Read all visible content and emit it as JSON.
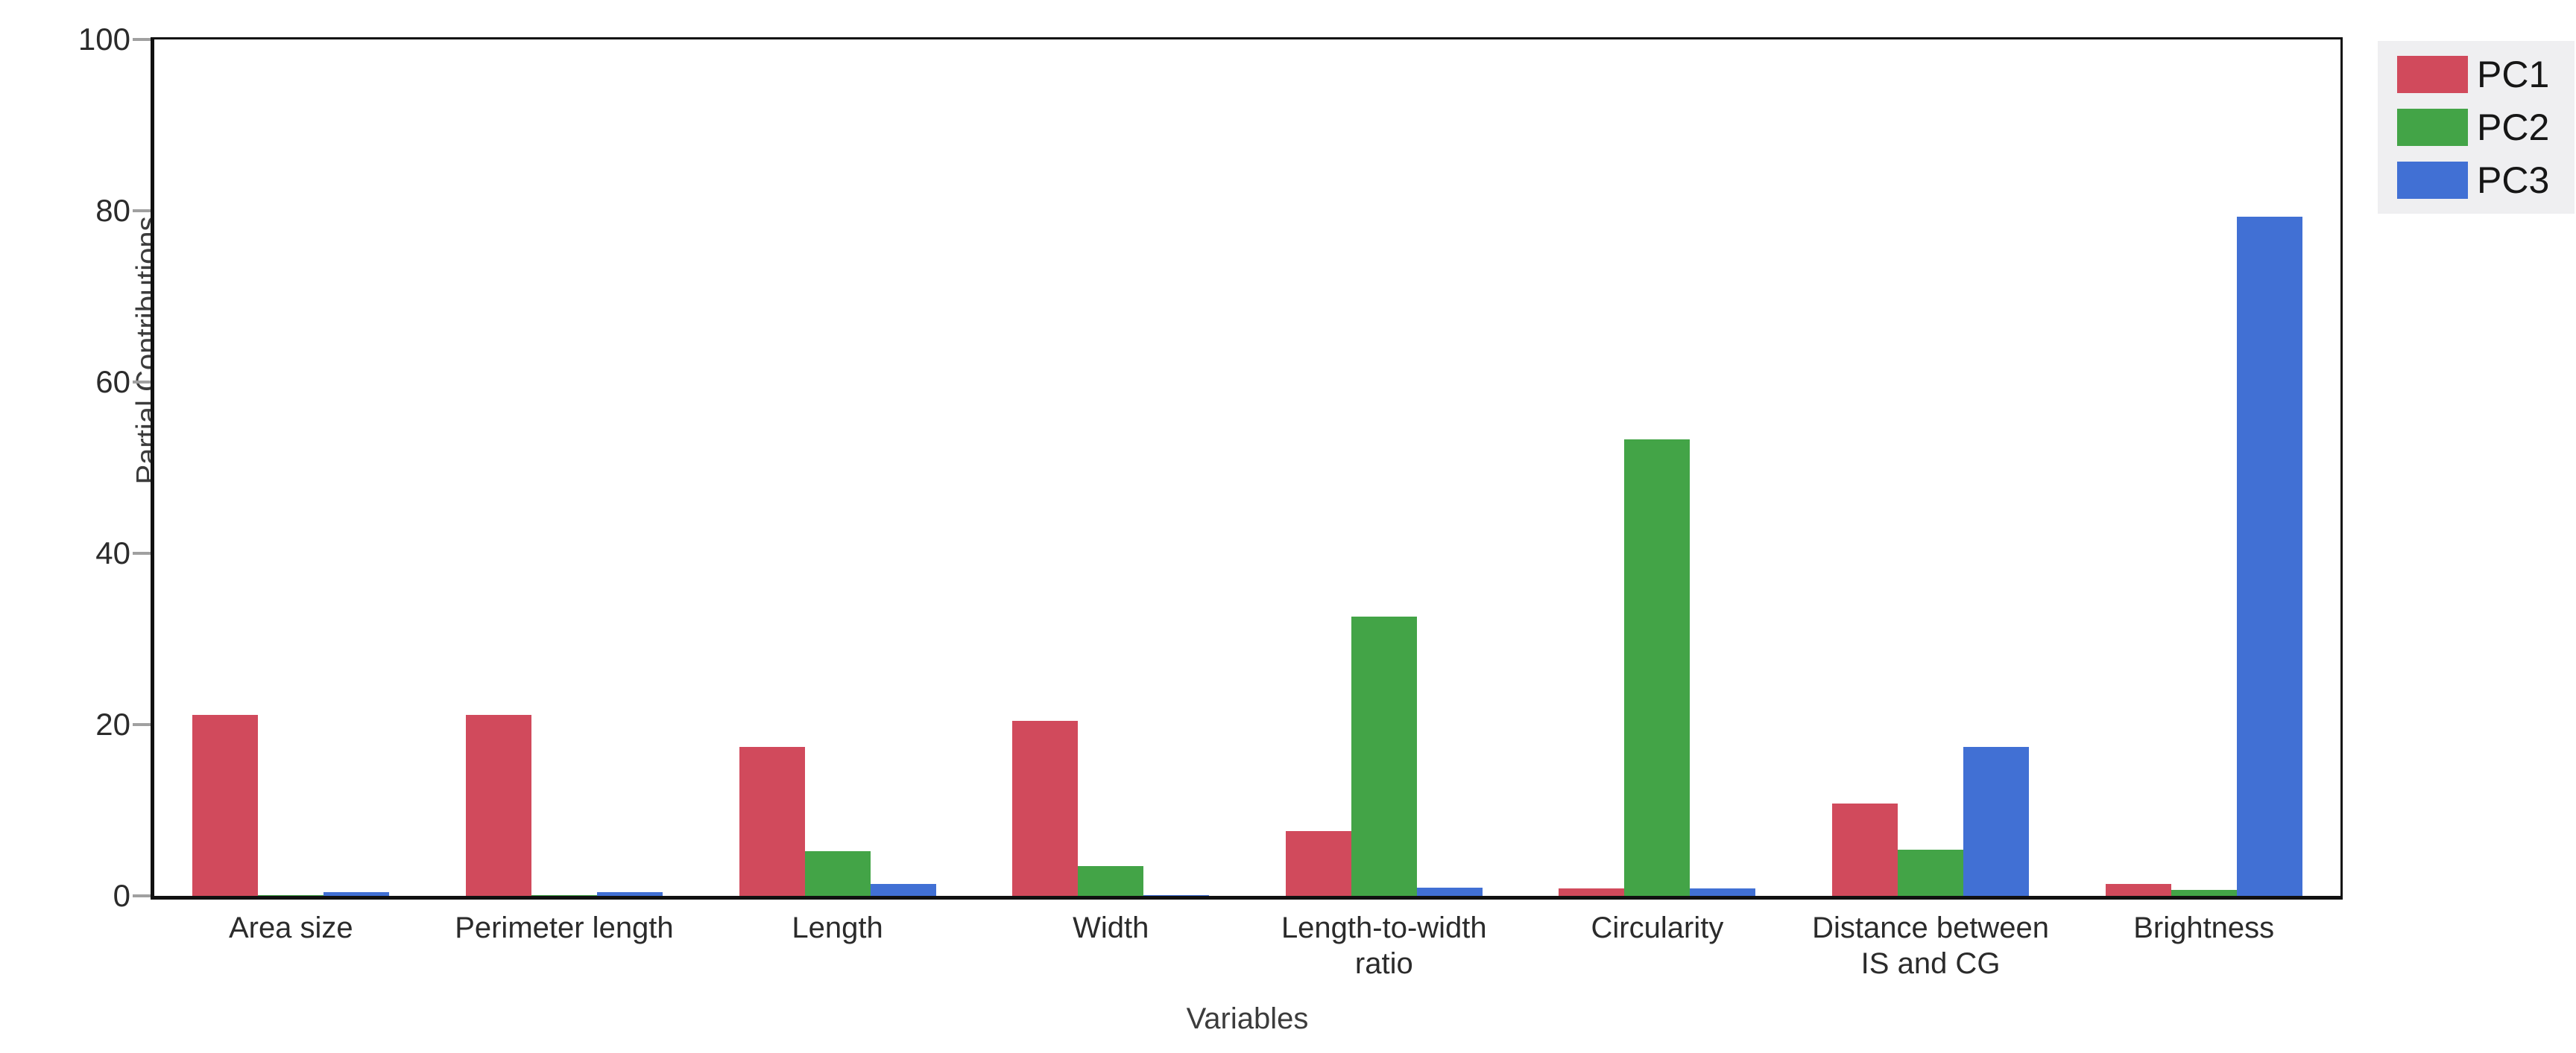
{
  "chart_data": {
    "type": "bar",
    "title": "",
    "xlabel": "Variables",
    "ylabel": "Partial Contributions",
    "ylim": [
      0,
      100
    ],
    "yticks": [
      0,
      20,
      40,
      60,
      80,
      100
    ],
    "grid": false,
    "legend_position": "top-right",
    "categories": [
      "Area size",
      "Perimeter length",
      "Length",
      "Width",
      "Length-to-width\nratio",
      "Circularity",
      "Distance between\nIS and CG",
      "Brightness"
    ],
    "series": [
      {
        "name": "PC1",
        "color": "#D14A5C",
        "values": [
          21.1,
          21.1,
          17.4,
          20.4,
          7.6,
          0.9,
          10.8,
          1.4
        ]
      },
      {
        "name": "PC2",
        "color": "#43A447",
        "values": [
          0.1,
          0.1,
          5.2,
          3.5,
          32.6,
          53.3,
          5.4,
          0.7
        ]
      },
      {
        "name": "PC3",
        "color": "#4170D4",
        "values": [
          0.4,
          0.4,
          1.4,
          0.1,
          1.0,
          0.9,
          17.4,
          79.3
        ]
      }
    ]
  },
  "axes": {
    "y_title": "Partial Contributions",
    "x_title": "Variables"
  },
  "style": {
    "axis_line_color": "#111111",
    "tick_mark_color": "#a0a0a0",
    "legend_background": "#efeff1"
  }
}
